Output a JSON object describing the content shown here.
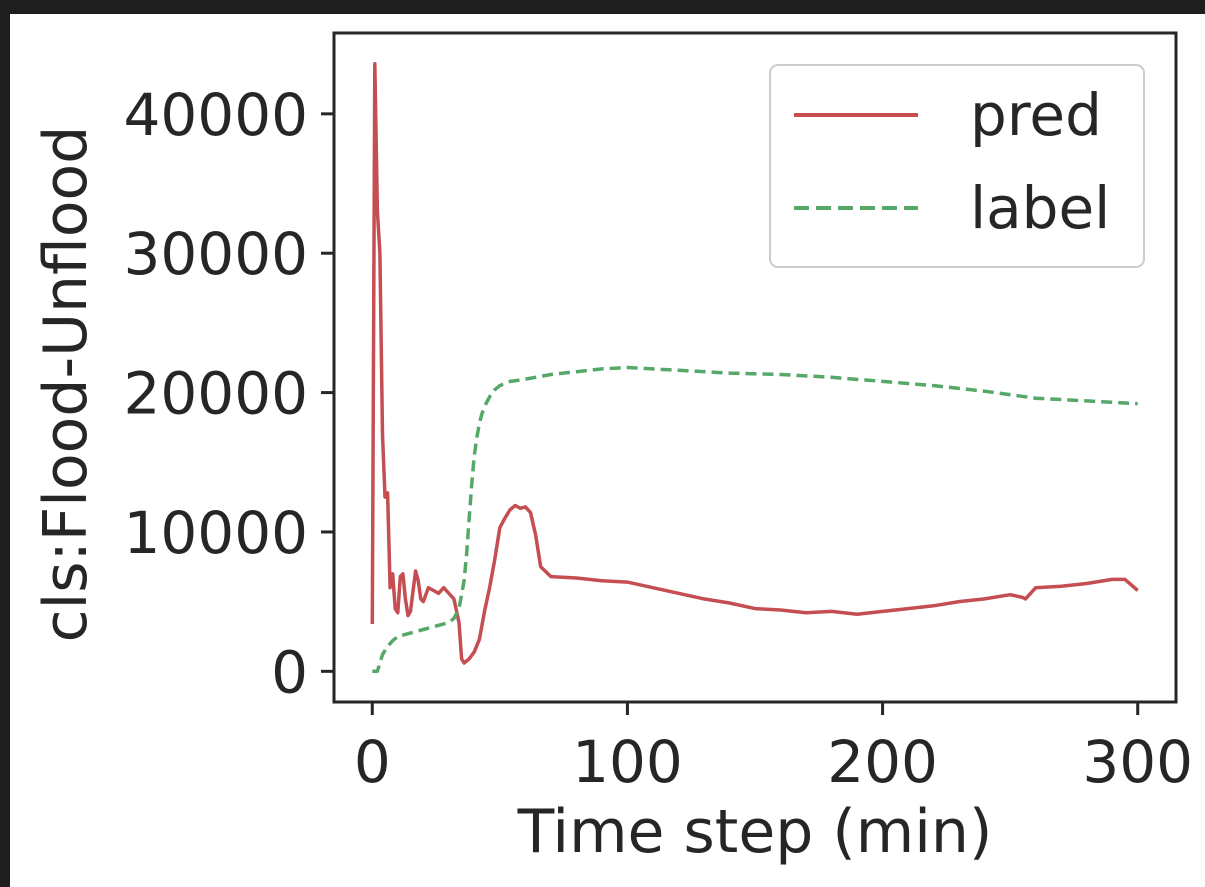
{
  "colors": {
    "frame_bg": "#1e1e1e",
    "axes_bg": "#ffffff",
    "axis_color": "#262626",
    "pred": "#c44e52",
    "label": "#55a868",
    "legend_border": "#cccccc"
  },
  "chart_data": {
    "type": "line",
    "title": "",
    "xlabel": "Time step (min)",
    "ylabel": "cls:Flood-Unflood",
    "xlim": [
      -15,
      315
    ],
    "ylim": [
      -2200,
      45800
    ],
    "xticks": [
      0,
      100,
      200,
      300
    ],
    "xtick_labels": [
      "0",
      "100",
      "200",
      "300"
    ],
    "yticks": [
      0,
      10000,
      20000,
      30000,
      40000
    ],
    "ytick_labels": [
      "0",
      "10000",
      "20000",
      "30000",
      "40000"
    ],
    "grid": false,
    "legend": {
      "position": "upper right",
      "entries": [
        {
          "name": "pred",
          "color": "#c44e52",
          "style": "solid"
        },
        {
          "name": "label",
          "color": "#55a868",
          "style": "dashed"
        }
      ]
    },
    "series": [
      {
        "name": "pred",
        "color": "#c44e52",
        "style": "solid",
        "x": [
          0,
          1,
          2,
          3,
          4,
          5,
          6,
          7,
          8,
          9,
          10,
          11,
          12,
          13,
          14,
          15,
          16,
          17,
          18,
          19,
          20,
          22,
          24,
          26,
          28,
          30,
          32,
          34,
          35,
          36,
          38,
          40,
          42,
          44,
          46,
          48,
          50,
          52,
          54,
          56,
          58,
          60,
          62,
          64,
          66,
          70,
          80,
          90,
          100,
          110,
          120,
          130,
          140,
          150,
          160,
          170,
          180,
          190,
          200,
          210,
          220,
          230,
          240,
          250,
          255,
          256,
          260,
          270,
          280,
          290,
          295,
          300
        ],
        "y": [
          3400,
          43600,
          33000,
          30000,
          17000,
          12500,
          12800,
          6000,
          7000,
          4500,
          4200,
          6800,
          7000,
          5200,
          4000,
          4300,
          5800,
          7200,
          6500,
          5200,
          5000,
          6000,
          5800,
          5600,
          6000,
          5600,
          5200,
          3500,
          900,
          600,
          900,
          1400,
          2300,
          4300,
          6000,
          8000,
          10300,
          11000,
          11600,
          11900,
          11700,
          11800,
          11400,
          9800,
          7500,
          6800,
          6700,
          6500,
          6400,
          6000,
          5600,
          5200,
          4900,
          4500,
          4400,
          4200,
          4300,
          4100,
          4300,
          4500,
          4700,
          5000,
          5200,
          5500,
          5300,
          5200,
          6000,
          6100,
          6300,
          6600,
          6600,
          5800
        ]
      },
      {
        "name": "label",
        "color": "#55a868",
        "style": "dashed",
        "x": [
          0,
          2,
          4,
          6,
          8,
          10,
          14,
          20,
          26,
          30,
          32,
          34,
          36,
          37,
          38,
          39,
          40,
          41,
          42,
          43,
          44,
          46,
          48,
          50,
          54,
          58,
          64,
          70,
          80,
          90,
          100,
          110,
          120,
          140,
          160,
          180,
          200,
          220,
          240,
          260,
          280,
          300
        ],
        "y": [
          0,
          0,
          1200,
          1800,
          2200,
          2500,
          2700,
          3000,
          3300,
          3500,
          3800,
          4500,
          6500,
          8500,
          11000,
          13500,
          15500,
          16800,
          17800,
          18500,
          19000,
          19700,
          20200,
          20500,
          20800,
          20900,
          21100,
          21300,
          21500,
          21700,
          21800,
          21700,
          21600,
          21400,
          21300,
          21100,
          20800,
          20500,
          20100,
          19600,
          19400,
          19200
        ]
      }
    ]
  }
}
